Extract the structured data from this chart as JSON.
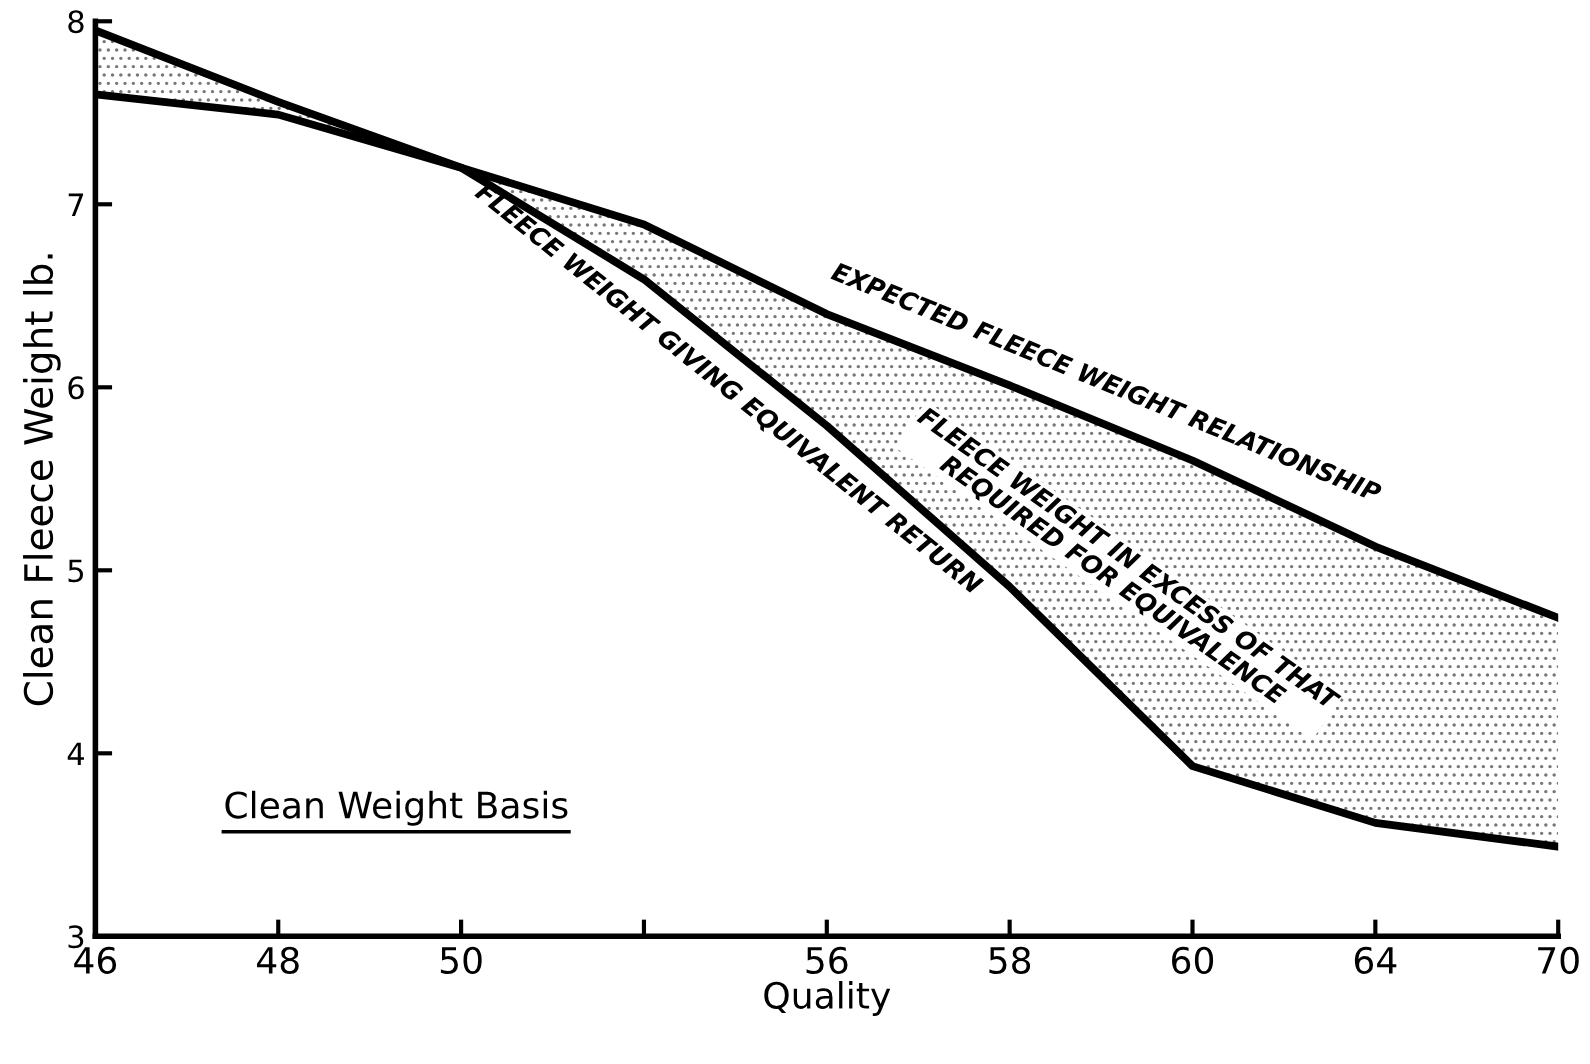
{
  "chart_data": {
    "type": "line",
    "categories": [
      "46",
      "48",
      "50",
      null,
      "56",
      "58",
      "60",
      "64",
      "70"
    ],
    "xlabel": "Quality",
    "ylabel": "Clean Fleece Weight lb.",
    "ylim": [
      3,
      8
    ],
    "yticks": [
      3,
      4,
      5,
      6,
      7,
      8
    ],
    "series": [
      {
        "name": "EXPECTED FLEECE WEIGHT RELATIONSHIP",
        "color": "#000000",
        "values": [
          7.95,
          7.56,
          7.2,
          6.89,
          6.4,
          6.01,
          5.6,
          5.13,
          4.74
        ],
        "lower": [
          7.6,
          7.49,
          7.2,
          6.59,
          5.79,
          4.91,
          3.93,
          3.62,
          3.49
        ],
        "upper": [
          7.95,
          7.56,
          7.2,
          6.89,
          6.4,
          6.01,
          5.6,
          5.13,
          4.74
        ]
      },
      {
        "name": "FLEECE WEIGHT GIVING EQUIVALENT RETURN",
        "color": "#000000",
        "values": [
          7.6,
          7.49,
          7.2,
          6.59,
          5.79,
          4.91,
          3.93,
          3.62,
          3.49
        ]
      }
    ],
    "annotations": [
      "FLEECE WEIGHT IN EXCESS OF THAT\nREQUIRED FOR EQUIVALENCE",
      "Clean Weight Basis"
    ],
    "grid": false,
    "legend": false,
    "marker": "none",
    "line_style": "solid"
  }
}
